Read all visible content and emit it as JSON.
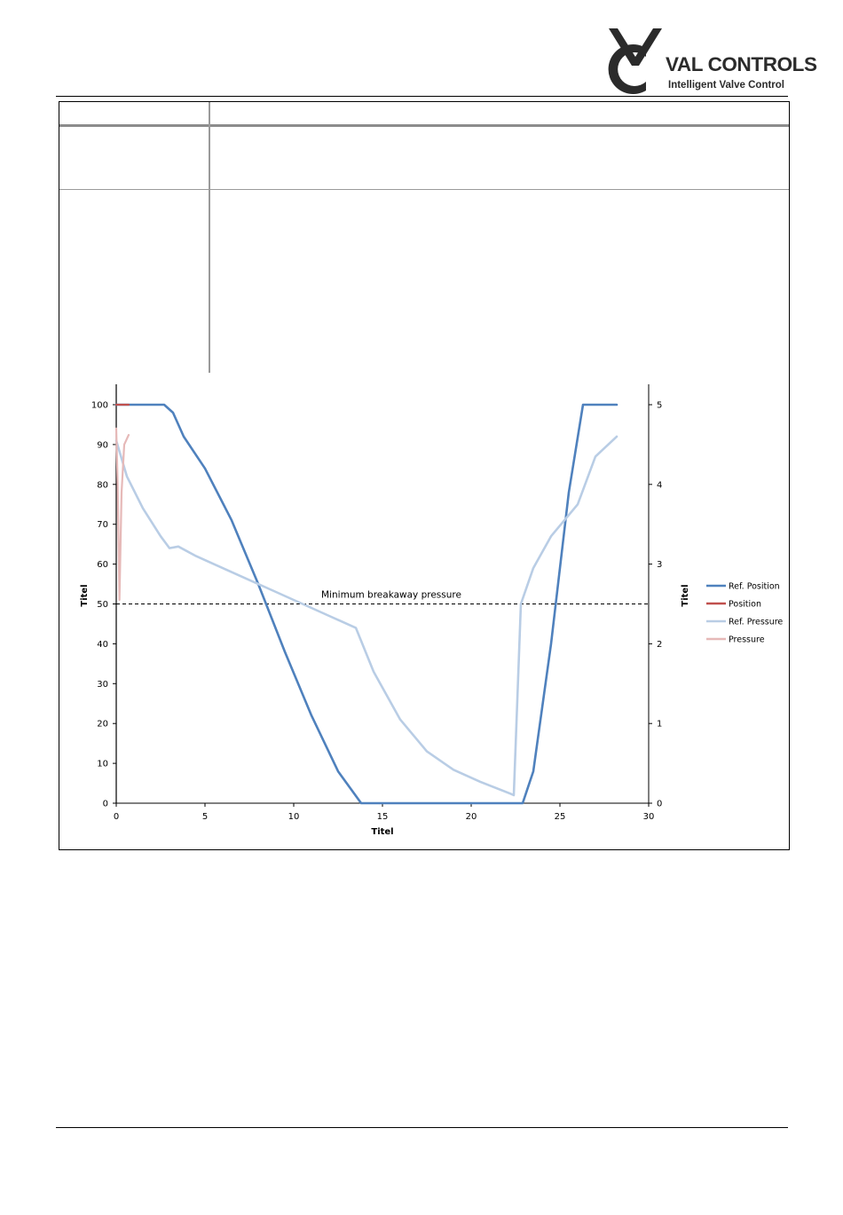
{
  "header": {
    "logo_name": "VAL CONTROLS",
    "logo_tagline": "Intelligent Valve Control",
    "logo_icon": "val-controls-logo-icon"
  },
  "colors": {
    "ref_position": "#4f81bd",
    "position": "#c0504d",
    "ref_pressure": "#b9cde5",
    "pressure": "#e6b9b8",
    "threshold": "#000000"
  },
  "chart_data": {
    "type": "line",
    "title": "",
    "xlabel": "Titel",
    "ylabel": "Titel",
    "y2label": "Titel",
    "xlim": [
      0,
      30
    ],
    "ylim": [
      0,
      100
    ],
    "y2lim": [
      0,
      5
    ],
    "x_ticks": [
      0,
      5,
      10,
      15,
      20,
      25,
      30
    ],
    "y_ticks": [
      0,
      10,
      20,
      30,
      40,
      50,
      60,
      70,
      80,
      90,
      100
    ],
    "y2_ticks": [
      0,
      1,
      2,
      3,
      4,
      5
    ],
    "grid": false,
    "legend_position": "right",
    "threshold": {
      "label": "Minimum breakaway pressure",
      "y": 50
    },
    "series": [
      {
        "name": "Ref. Position",
        "axis": "left",
        "color": "#4f81bd",
        "width": 2.6,
        "x": [
          0,
          2.7,
          3.2,
          3.8,
          5,
          6.5,
          8,
          9.5,
          11,
          12.5,
          13.8,
          14.0,
          22.9,
          23.5,
          24.5,
          25.5,
          26.3,
          26.5,
          28.2
        ],
        "y": [
          100,
          100,
          98,
          92,
          84,
          71,
          55,
          38,
          22,
          8,
          0,
          0,
          0,
          8,
          40,
          78,
          100,
          100,
          100
        ]
      },
      {
        "name": "Position",
        "axis": "left",
        "color": "#c0504d",
        "width": 2.2,
        "x": [
          0,
          0.3,
          0.7
        ],
        "y": [
          100,
          100,
          100
        ]
      },
      {
        "name": "Ref. Pressure",
        "axis": "right",
        "color": "#b9cde5",
        "width": 2.6,
        "x": [
          0,
          0.6,
          1.5,
          2.5,
          3.0,
          3.5,
          4.5,
          6,
          7.5,
          9,
          10.5,
          12,
          13.5,
          14.5,
          16,
          17.5,
          19,
          20.5,
          22.2,
          22.4,
          22.8,
          23.5,
          24.5,
          26,
          27,
          28.2
        ],
        "y": [
          4.55,
          4.1,
          3.7,
          3.35,
          3.2,
          3.22,
          3.1,
          2.95,
          2.8,
          2.65,
          2.5,
          2.35,
          2.2,
          1.65,
          1.05,
          0.65,
          0.42,
          0.27,
          0.12,
          0.1,
          2.5,
          2.95,
          3.35,
          3.75,
          4.35,
          4.6
        ]
      },
      {
        "name": "Pressure",
        "axis": "right",
        "color": "#e6b9b8",
        "width": 2.2,
        "x": [
          0,
          0.08,
          0.18,
          0.3,
          0.45,
          0.7
        ],
        "y": [
          4.7,
          4.0,
          2.55,
          3.9,
          4.5,
          4.62
        ]
      }
    ]
  }
}
